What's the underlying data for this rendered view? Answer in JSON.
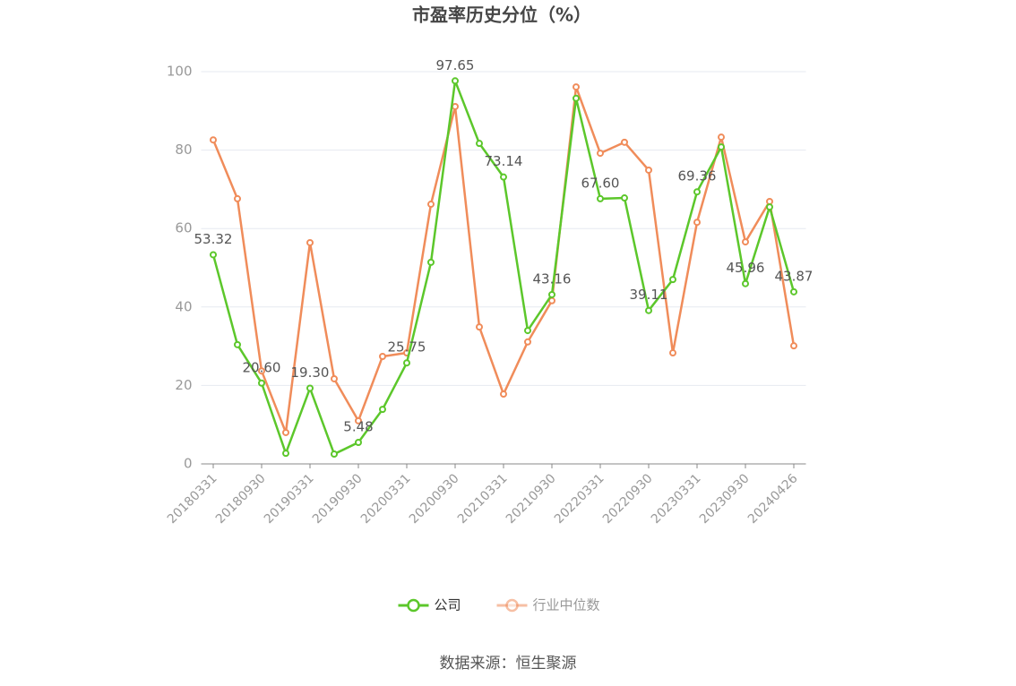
{
  "chart_data": {
    "type": "line",
    "title": "市盈率历史分位（%）",
    "source": "数据来源：恒生聚源",
    "categories": [
      "20180331",
      null,
      "20180930",
      null,
      "20190331",
      null,
      "20190930",
      null,
      "20200331",
      null,
      "20200930",
      null,
      "20210331",
      null,
      "20210930",
      null,
      "20220331",
      null,
      "20220930",
      null,
      "20230331",
      null,
      "20230930",
      null,
      "20240426"
    ],
    "series": [
      {
        "name": "公司",
        "color": "#5cc72b",
        "values": [
          53.32,
          30.4,
          20.6,
          2.7,
          19.3,
          2.5,
          5.48,
          13.9,
          25.75,
          51.4,
          97.65,
          81.7,
          73.14,
          34.0,
          43.16,
          93.2,
          67.6,
          67.8,
          39.11,
          47.0,
          69.36,
          80.8,
          45.96,
          65.5,
          43.87
        ],
        "value_labels": [
          "53.32",
          null,
          "20.60",
          null,
          "19.30",
          null,
          "5.48",
          null,
          "25.75",
          null,
          "97.65",
          null,
          "73.14",
          null,
          "43.16",
          null,
          "67.60",
          null,
          "39.11",
          null,
          "69.36",
          null,
          "45.96",
          null,
          "43.87"
        ]
      },
      {
        "name": "行业中位数",
        "color": "#f08c5a",
        "values": [
          82.6,
          67.6,
          23.7,
          8.0,
          56.4,
          21.7,
          11.0,
          27.4,
          28.3,
          66.2,
          91.1,
          34.9,
          17.8,
          31.1,
          41.6,
          96.1,
          79.2,
          82.0,
          74.9,
          28.3,
          61.6,
          83.3,
          56.6,
          66.9,
          30.1
        ]
      }
    ],
    "ylim": [
      0,
      100
    ],
    "yticks": [
      0,
      20,
      40,
      60,
      80,
      100
    ],
    "grid": true,
    "legend": "bottom"
  }
}
